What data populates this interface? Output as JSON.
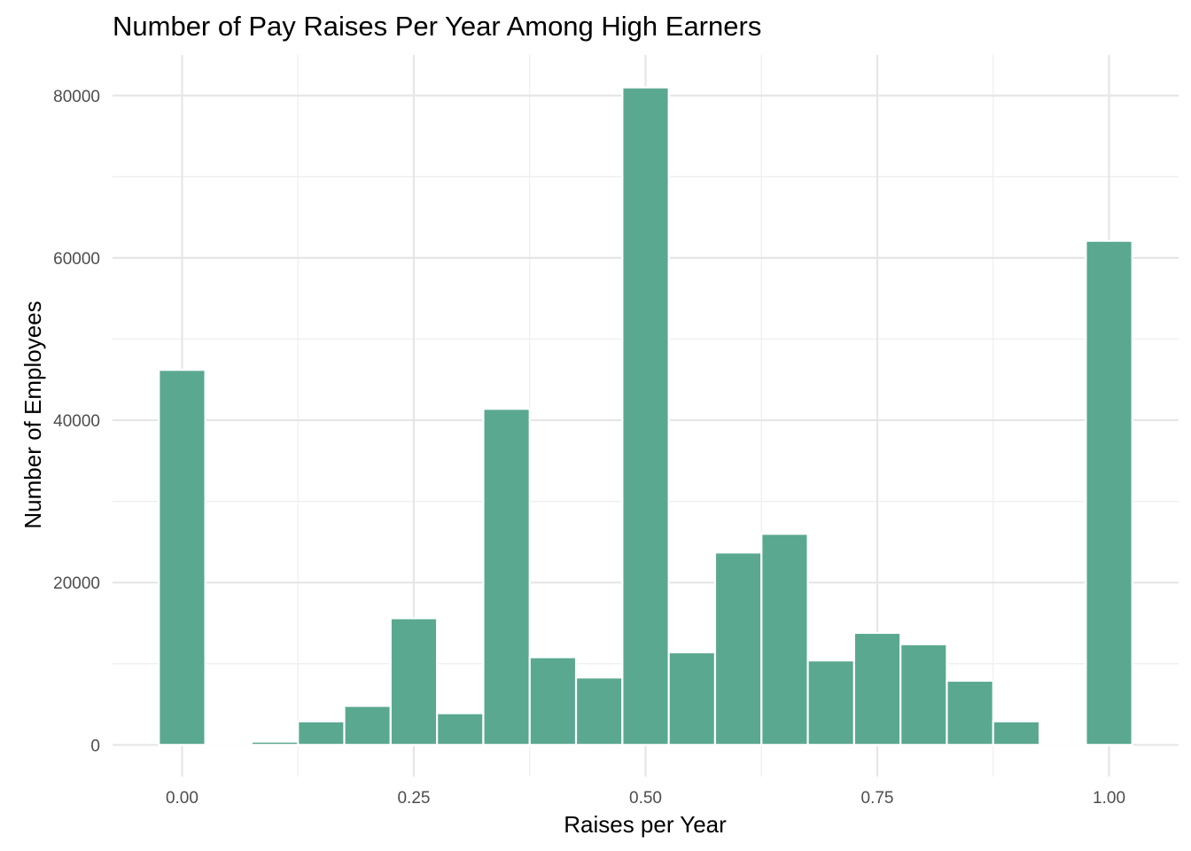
{
  "chart_data": {
    "type": "bar",
    "title": "Number of Pay Raises Per Year Among High Earners",
    "xlabel": "Raises per Year",
    "ylabel": "Number of Employees",
    "bin_width": 0.05,
    "x_centers": [
      0.0,
      0.05,
      0.1,
      0.15,
      0.2,
      0.25,
      0.3,
      0.35,
      0.4,
      0.45,
      0.5,
      0.55,
      0.6,
      0.65,
      0.7,
      0.75,
      0.8,
      0.85,
      0.9,
      0.95,
      1.0
    ],
    "values": [
      46200,
      0,
      400,
      2900,
      4800,
      15600,
      3900,
      41400,
      10800,
      8300,
      81000,
      11400,
      23700,
      26000,
      10400,
      13800,
      12400,
      7900,
      2900,
      0,
      62100
    ],
    "xlim": [
      -0.075,
      1.075
    ],
    "ylim": [
      -3900,
      85000
    ],
    "x_ticks": [
      0.0,
      0.25,
      0.5,
      0.75,
      1.0
    ],
    "x_tick_labels": [
      "0.00",
      "0.25",
      "0.50",
      "0.75",
      "1.00"
    ],
    "y_ticks": [
      0,
      20000,
      40000,
      60000,
      80000
    ],
    "y_tick_labels": [
      "0",
      "20000",
      "40000",
      "60000",
      "80000"
    ],
    "grid": true,
    "bar_color": "#5aa890"
  }
}
